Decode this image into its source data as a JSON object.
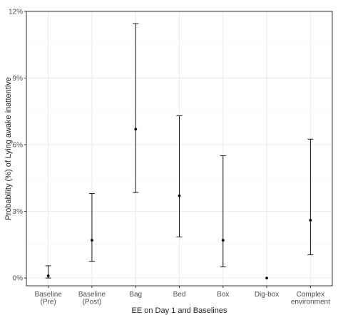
{
  "chart_data": {
    "type": "scatter",
    "subtype": "point-range",
    "xlabel": "EE on Day 1 and Baselines",
    "ylabel": "Probability (%) of Lying awake inattentive",
    "categories": [
      [
        "Baseline",
        "(Pre)"
      ],
      [
        "Baseline",
        "(Post)"
      ],
      [
        "Bag"
      ],
      [
        "Bed"
      ],
      [
        "Box"
      ],
      [
        "Dig-box"
      ],
      [
        "Complex",
        "environment"
      ]
    ],
    "estimates": [
      0.1,
      1.7,
      6.7,
      3.7,
      1.7,
      0.0,
      2.6
    ],
    "lower": [
      0.0,
      0.75,
      3.85,
      1.85,
      0.5,
      0.0,
      1.05
    ],
    "upper": [
      0.55,
      3.8,
      11.45,
      7.3,
      5.5,
      0.0,
      6.25
    ],
    "ylim": [
      -0.35,
      12.0
    ],
    "yticks": [
      0,
      3,
      6,
      9,
      12
    ],
    "ytick_labels": [
      "0%",
      "3%",
      "6%",
      "9%",
      "12%"
    ],
    "grid": true,
    "legend": "none",
    "colors": {
      "panel_border": "#333333",
      "grid_major": "#ebebeb",
      "grid_minor": "#f5f5f5",
      "point": "#000000"
    }
  }
}
